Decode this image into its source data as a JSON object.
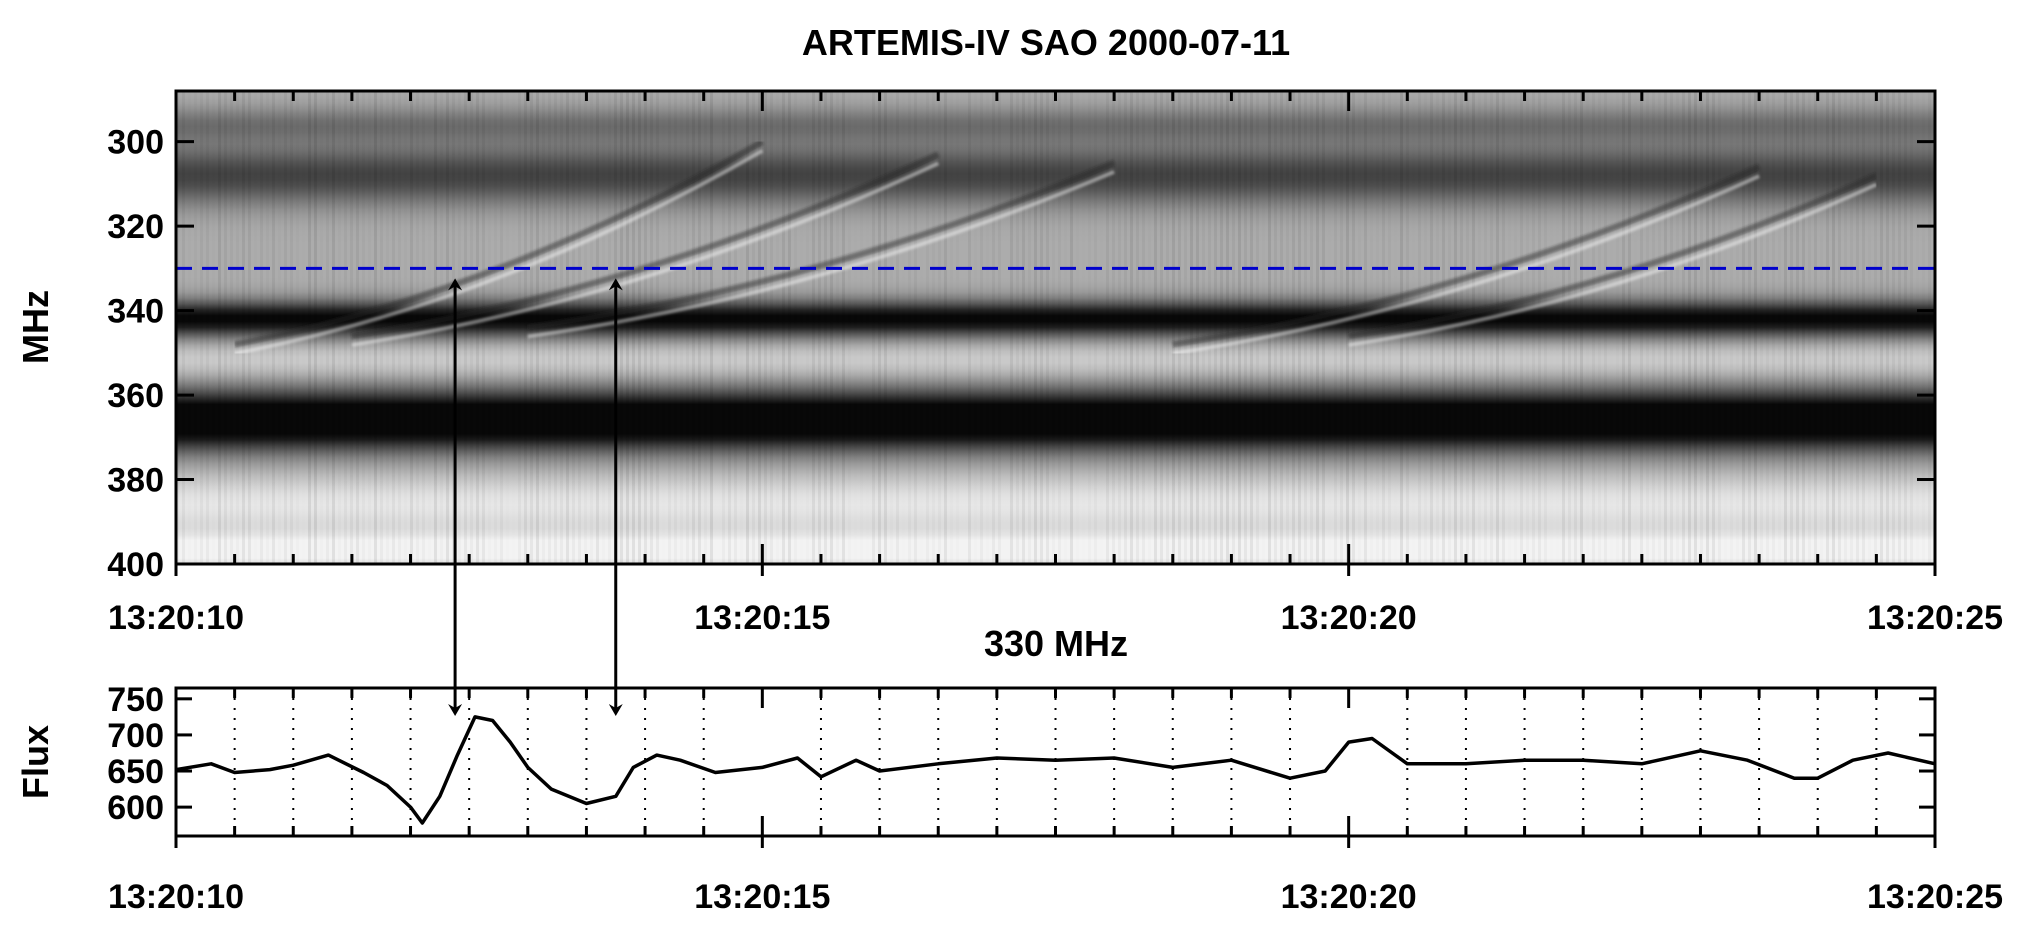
{
  "chart_data": [
    {
      "type": "heatmap",
      "title": "ARTEMIS-IV  SAO 2000-07-11",
      "xlabel": "",
      "ylabel": "MHz",
      "x_ticks": [
        "13:20:10",
        "13:20:15",
        "13:20:20",
        "13:20:25"
      ],
      "x_range_seconds": [
        0,
        15
      ],
      "y_ticks": [
        300,
        320,
        340,
        360,
        380,
        400
      ],
      "ylim": [
        288,
        400
      ],
      "y_inverted": true,
      "colormap": "grayscale",
      "marker_frequency_mhz": 330,
      "marker_color": "#0000cc",
      "bands": [
        {
          "freq_mhz": 366,
          "intensity": 0.95,
          "width_mhz": 5
        },
        {
          "freq_mhz": 342,
          "intensity": 0.75,
          "width_mhz": 3
        },
        {
          "freq_mhz": 308,
          "intensity": 0.45,
          "width_mhz": 5
        },
        {
          "freq_mhz": 296,
          "intensity": 0.25,
          "width_mhz": 3
        },
        {
          "freq_mhz": 397,
          "intensity": -0.35,
          "width_mhz": 3
        },
        {
          "freq_mhz": 386,
          "intensity": -0.25,
          "width_mhz": 5
        },
        {
          "freq_mhz": 352,
          "intensity": -0.15,
          "width_mhz": 3
        }
      ],
      "drifting_features": [
        {
          "t_start_s": 0.5,
          "f_start_mhz": 348,
          "t_end_s": 5.0,
          "f_end_mhz": 300
        },
        {
          "t_start_s": 1.5,
          "f_start_mhz": 346,
          "t_end_s": 6.5,
          "f_end_mhz": 303
        },
        {
          "t_start_s": 3.0,
          "f_start_mhz": 344,
          "t_end_s": 8.0,
          "f_end_mhz": 305
        },
        {
          "t_start_s": 8.5,
          "f_start_mhz": 348,
          "t_end_s": 13.5,
          "f_end_mhz": 306
        },
        {
          "t_start_s": 10.0,
          "f_start_mhz": 346,
          "t_end_s": 14.5,
          "f_end_mhz": 308
        }
      ],
      "arrows": [
        {
          "t_s": 2.38
        },
        {
          "t_s": 3.75
        }
      ]
    },
    {
      "type": "line",
      "title": "330 MHz",
      "xlabel": "",
      "ylabel": "Flux",
      "x_ticks": [
        "13:20:10",
        "13:20:15",
        "13:20:20",
        "13:20:25"
      ],
      "x_range_seconds": [
        0,
        15
      ],
      "y_ticks": [
        600,
        650,
        700,
        750
      ],
      "ylim": [
        560,
        765
      ],
      "grid": "vertical dotted",
      "series": [
        {
          "x": [
            0.0,
            0.3,
            0.5,
            0.8,
            1.0,
            1.3,
            1.6,
            1.8,
            2.0,
            2.1,
            2.25,
            2.4,
            2.55,
            2.7,
            2.85,
            3.0,
            3.2,
            3.5,
            3.75,
            3.9,
            4.1,
            4.3,
            4.6,
            5.0,
            5.3,
            5.5,
            5.8,
            6.0,
            6.5,
            7.0,
            7.5,
            8.0,
            8.5,
            9.0,
            9.5,
            9.8,
            10.0,
            10.2,
            10.5,
            11.0,
            11.5,
            12.0,
            12.5,
            13.0,
            13.4,
            13.8,
            14.0,
            14.3,
            14.6,
            15.0
          ],
          "y": [
            652,
            660,
            648,
            652,
            658,
            672,
            648,
            630,
            600,
            578,
            615,
            672,
            725,
            720,
            690,
            655,
            625,
            605,
            615,
            655,
            672,
            665,
            648,
            655,
            668,
            642,
            665,
            650,
            660,
            668,
            665,
            668,
            655,
            665,
            640,
            650,
            690,
            695,
            660,
            660,
            665,
            665,
            660,
            678,
            665,
            640,
            640,
            665,
            675,
            660
          ]
        }
      ],
      "arrows": [
        {
          "t_s": 2.38
        },
        {
          "t_s": 3.75
        }
      ]
    }
  ]
}
